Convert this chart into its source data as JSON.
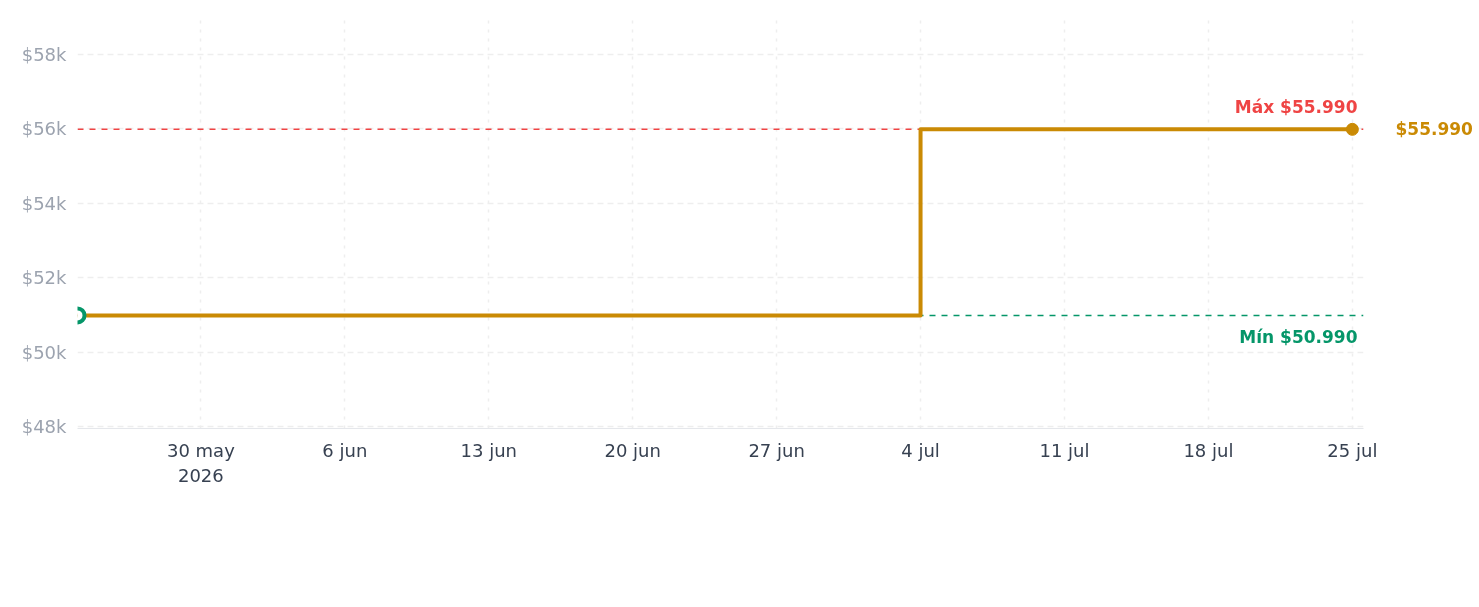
{
  "chart_data": {
    "type": "step",
    "x": [
      "2026-05-24",
      "2026-07-04",
      "2026-07-25"
    ],
    "series": [
      {
        "color": "#ca8a04",
        "values": [
          50990,
          55990,
          55990
        ]
      }
    ],
    "marker": "circle",
    "xlim": [
      "2026-05-24",
      "2026-07-25T13:00"
    ],
    "xticks": [
      {
        "value": "2026-05-30",
        "label": "30 may\n2026"
      },
      {
        "value": "2026-06-06",
        "label": "6 jun"
      },
      {
        "value": "2026-06-13",
        "label": "13 jun"
      },
      {
        "value": "2026-06-20",
        "label": "20 jun"
      },
      {
        "value": "2026-06-27",
        "label": "27 jun"
      },
      {
        "value": "2026-07-04",
        "label": "4 jul"
      },
      {
        "value": "2026-07-11",
        "label": "11 jul"
      },
      {
        "value": "2026-07-18",
        "label": "18 jul"
      },
      {
        "value": "2026-07-25",
        "label": "25 jul"
      }
    ],
    "ylim": [
      47950,
      59050
    ],
    "yticks": [
      {
        "value": 48000,
        "label": "$48k"
      },
      {
        "value": 50000,
        "label": "$50k"
      },
      {
        "value": 52000,
        "label": "$52k"
      },
      {
        "value": 54000,
        "label": "$54k"
      },
      {
        "value": 56000,
        "label": "$56k"
      },
      {
        "value": 58000,
        "label": "$58k"
      }
    ],
    "ref_lines": [
      {
        "axis": "y",
        "value": 55990,
        "label": "Máx $55.990",
        "color": "#ef4444",
        "line_style": "dashed"
      },
      {
        "axis": "y",
        "value": 50990,
        "label": "Mín $50.990",
        "color": "#059669",
        "line_style": "dashed"
      }
    ],
    "annotations": [
      {
        "text": "$55.990",
        "x": "2026-07-25",
        "y": 55990
      }
    ],
    "grid": true
  }
}
